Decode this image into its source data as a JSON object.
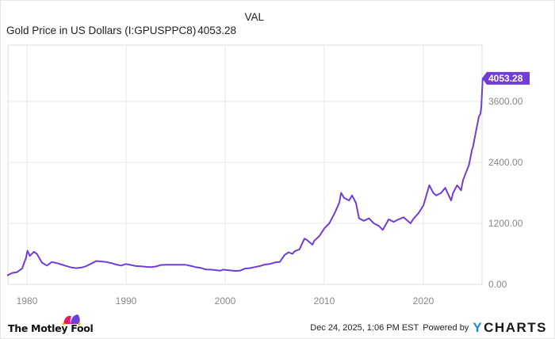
{
  "legend": {
    "val_header": "VAL",
    "series_name": "Gold Price in US Dollars (I:GPUSPPC8)",
    "series_value": "4053.28"
  },
  "chart_data": {
    "type": "line",
    "title": "Gold Price in US Dollars (I:GPUSPPC8)",
    "xlabel": "",
    "ylabel": "",
    "x_ticks": [
      "1980",
      "1990",
      "2000",
      "2010",
      "2020"
    ],
    "y_ticks": [
      "0.00",
      "1200.00",
      "2400.00",
      "3600.00"
    ],
    "ylim": [
      0,
      4300
    ],
    "xlim": [
      1978,
      2025.98
    ],
    "grid": true,
    "legend_position": "top-left",
    "last_value_label": "4053.28",
    "series": [
      {
        "name": "Gold Price in US Dollars (I:GPUSPPC8)",
        "color": "#6f3ed8",
        "x": [
          1978.0,
          1978.5,
          1979.0,
          1979.5,
          1979.9,
          1980.05,
          1980.3,
          1980.7,
          1981.0,
          1981.5,
          1982.0,
          1982.5,
          1983.0,
          1983.5,
          1984.0,
          1984.5,
          1985.0,
          1985.5,
          1986.0,
          1986.5,
          1987.0,
          1987.5,
          1988.0,
          1988.5,
          1989.0,
          1989.5,
          1990.0,
          1990.5,
          1991.0,
          1991.5,
          1992.0,
          1992.5,
          1993.0,
          1993.5,
          1994.0,
          1995.0,
          1996.0,
          1996.5,
          1997.0,
          1997.5,
          1998.0,
          1998.5,
          1999.0,
          1999.5,
          1999.8,
          2000.0,
          2000.5,
          2001.0,
          2001.5,
          2002.0,
          2002.5,
          2003.0,
          2003.5,
          2004.0,
          2004.5,
          2005.0,
          2005.5,
          2006.0,
          2006.4,
          2006.8,
          2007.0,
          2007.5,
          2008.0,
          2008.2,
          2008.8,
          2009.0,
          2009.5,
          2010.0,
          2010.5,
          2011.0,
          2011.5,
          2011.7,
          2012.0,
          2012.5,
          2012.8,
          2013.2,
          2013.5,
          2014.0,
          2014.5,
          2015.0,
          2015.5,
          2015.9,
          2016.5,
          2017.0,
          2017.5,
          2018.0,
          2018.7,
          2019.0,
          2019.5,
          2020.0,
          2020.6,
          2021.0,
          2021.3,
          2021.8,
          2022.2,
          2022.8,
          2023.0,
          2023.4,
          2023.8,
          2024.0,
          2024.3,
          2024.6,
          2024.9,
          2025.0,
          2025.3,
          2025.6,
          2025.75,
          2025.85,
          2025.98
        ],
        "values": [
          175,
          225,
          240,
          310,
          520,
          660,
          560,
          640,
          600,
          430,
          370,
          440,
          420,
          390,
          360,
          330,
          320,
          330,
          360,
          410,
          460,
          450,
          440,
          420,
          390,
          370,
          400,
          380,
          360,
          355,
          345,
          340,
          350,
          380,
          385,
          385,
          385,
          365,
          340,
          325,
          295,
          290,
          280,
          270,
          290,
          285,
          275,
          265,
          270,
          310,
          320,
          340,
          360,
          390,
          400,
          430,
          440,
          580,
          630,
          600,
          650,
          690,
          900,
          880,
          780,
          860,
          950,
          1100,
          1200,
          1380,
          1600,
          1800,
          1700,
          1650,
          1750,
          1600,
          1300,
          1250,
          1300,
          1200,
          1150,
          1070,
          1280,
          1230,
          1280,
          1320,
          1200,
          1290,
          1400,
          1550,
          1950,
          1800,
          1750,
          1800,
          1900,
          1650,
          1800,
          1950,
          1850,
          2050,
          2200,
          2350,
          2650,
          2700,
          3000,
          3300,
          3350,
          3500,
          4053.28
        ]
      }
    ]
  },
  "footer": {
    "brand_left": "The Motley Fool",
    "timestamp": "Dec 24, 2025, 1:06 PM EST",
    "powered_by": "Powered by",
    "brand_right_y": "Y",
    "brand_right_rest": "CHARTS"
  },
  "colors": {
    "line": "#6f3ed8",
    "badge": "#6f3ed8",
    "grid": "#e8e8e8",
    "axis_text": "#888888",
    "ycharts_blue": "#1a88e0"
  }
}
